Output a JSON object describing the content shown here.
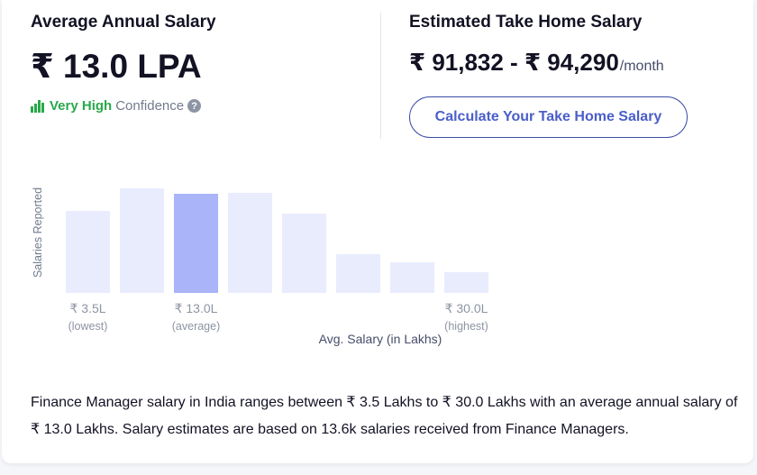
{
  "average": {
    "title": "Average Annual Salary",
    "value": "₹ 13.0 LPA",
    "confidence_level": "Very High",
    "confidence_word": "Confidence",
    "help_glyph": "?"
  },
  "take_home": {
    "title": "Estimated Take Home Salary",
    "range": "₹ 91,832 - ₹ 94,290",
    "period": "/month",
    "button_label": "Calculate Your Take Home Salary"
  },
  "chart_data": {
    "type": "bar",
    "ylabel": "Salaries Reported",
    "xlabel": "Avg. Salary (in Lakhs)",
    "values": [
      91,
      116,
      110,
      111,
      88,
      43,
      34,
      23
    ],
    "highlight_index": 2,
    "ylim": [
      0,
      116
    ],
    "tick_labels": [
      {
        "index": 0,
        "value": "₹ 3.5L",
        "sub": "(lowest)"
      },
      {
        "index": 2,
        "value": "₹ 13.0L",
        "sub": "(average)"
      },
      {
        "index": 7,
        "value": "₹ 30.0L",
        "sub": "(highest)"
      }
    ]
  },
  "description": "Finance Manager salary in India ranges between ₹ 3.5 Lakhs to ₹ 30.0 Lakhs with an average annual salary of ₹ 13.0 Lakhs. Salary estimates are based on 13.6k salaries received from Finance Managers.",
  "colors": {
    "bar": "#e9ecfd",
    "bar_active": "#a9b4f9",
    "confidence": "#29a84a",
    "button": "#4a5ec9"
  }
}
